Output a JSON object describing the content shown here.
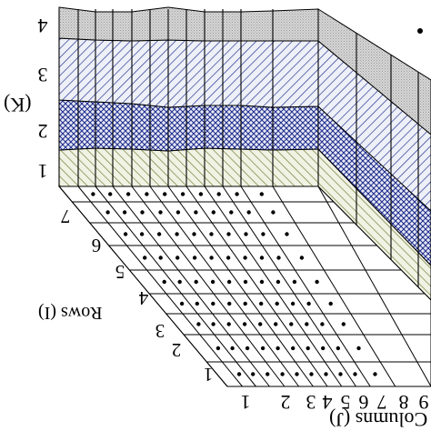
{
  "figure": {
    "row_axis_label": "Rows (I)",
    "column_axis_label": "Columns (J)",
    "layer_axis_label": "(K)",
    "layer_labels": [
      "1",
      "2",
      "3",
      "4"
    ],
    "row_labels": [
      "1",
      "2",
      "3",
      "4",
      "5",
      "6",
      "7"
    ],
    "column_labels": [
      "1",
      "2",
      "3",
      "4",
      "5",
      "6",
      "7",
      "8",
      "9"
    ],
    "layers": [
      {
        "label": "1",
        "fill_pattern": "diagonal-hatch",
        "color": "#6b7a2e"
      },
      {
        "label": "2",
        "fill_pattern": "cross-hatch",
        "color": "#1c2a8c"
      },
      {
        "label": "3",
        "fill_pattern": "diagonal-hatch",
        "color": "#1c2a8c"
      },
      {
        "label": "4",
        "fill_pattern": "gray-stipple",
        "color": "#b4b4b4"
      }
    ],
    "grid_node_marker": "dot",
    "image_rendering": "mirrored"
  }
}
